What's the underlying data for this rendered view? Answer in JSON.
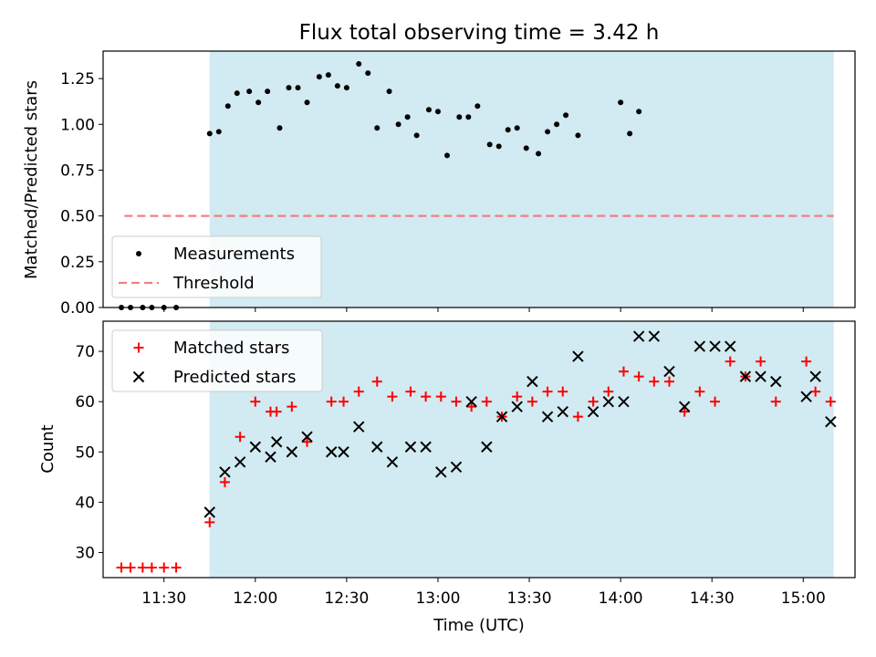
{
  "chart_data": [
    {
      "type": "scatter",
      "title": "Flux total observing time = 3.42 h",
      "xlabel": "",
      "ylabel": "Matched/Predicted stars",
      "ylim": [
        0,
        1.4
      ],
      "y_ticks": [
        0.0,
        0.25,
        0.5,
        0.75,
        1.0,
        1.25
      ],
      "y_tick_labels": [
        "0.00",
        "0.25",
        "0.50",
        "0.75",
        "1.00",
        "1.25"
      ],
      "legend_position": "lower-left",
      "shaded_span": [
        "11:45",
        "15:10"
      ],
      "shade_color": "#add8e6",
      "series": [
        {
          "name": "Measurements",
          "marker": "dot",
          "color": "#000000",
          "points": [
            [
              "11:16",
              0.0
            ],
            [
              "11:19",
              0.0
            ],
            [
              "11:23",
              0.0
            ],
            [
              "11:26",
              0.0
            ],
            [
              "11:30",
              0.0
            ],
            [
              "11:34",
              0.0
            ],
            [
              "11:45",
              0.95
            ],
            [
              "11:48",
              0.96
            ],
            [
              "11:51",
              1.1
            ],
            [
              "11:54",
              1.17
            ],
            [
              "11:58",
              1.18
            ],
            [
              "12:01",
              1.12
            ],
            [
              "12:04",
              1.18
            ],
            [
              "12:08",
              0.98
            ],
            [
              "12:11",
              1.2
            ],
            [
              "12:14",
              1.2
            ],
            [
              "12:17",
              1.12
            ],
            [
              "12:21",
              1.26
            ],
            [
              "12:24",
              1.27
            ],
            [
              "12:27",
              1.21
            ],
            [
              "12:30",
              1.2
            ],
            [
              "12:34",
              1.33
            ],
            [
              "12:37",
              1.28
            ],
            [
              "12:40",
              0.98
            ],
            [
              "12:44",
              1.18
            ],
            [
              "12:47",
              1.0
            ],
            [
              "12:50",
              1.04
            ],
            [
              "12:53",
              0.94
            ],
            [
              "12:57",
              1.08
            ],
            [
              "13:00",
              1.07
            ],
            [
              "13:03",
              0.83
            ],
            [
              "13:07",
              1.04
            ],
            [
              "13:10",
              1.04
            ],
            [
              "13:13",
              1.1
            ],
            [
              "13:17",
              0.89
            ],
            [
              "13:20",
              0.88
            ],
            [
              "13:23",
              0.97
            ],
            [
              "13:26",
              0.98
            ],
            [
              "13:29",
              0.87
            ],
            [
              "13:33",
              0.84
            ],
            [
              "13:36",
              0.96
            ],
            [
              "13:39",
              1.0
            ],
            [
              "13:42",
              1.05
            ],
            [
              "13:46",
              0.94
            ],
            [
              "14:00",
              1.12
            ],
            [
              "14:03",
              0.95
            ],
            [
              "14:06",
              1.07
            ]
          ]
        },
        {
          "name": "Threshold",
          "marker": "dashed-line",
          "color": "#f08080",
          "points": [
            [
              "11:17",
              0.5
            ],
            [
              "15:10",
              0.5
            ]
          ]
        }
      ]
    },
    {
      "type": "scatter",
      "title": "",
      "xlabel": "Time (UTC)",
      "ylabel": "Count",
      "ylim": [
        25,
        76
      ],
      "y_ticks": [
        30,
        40,
        50,
        60,
        70
      ],
      "x_ticks": [
        "11:30",
        "12:00",
        "12:30",
        "13:00",
        "13:30",
        "14:00",
        "14:30",
        "15:00"
      ],
      "legend_position": "upper-left",
      "shaded_span": [
        "11:45",
        "15:10"
      ],
      "shade_color": "#add8e6",
      "series": [
        {
          "name": "Matched stars",
          "marker": "plus",
          "color": "#ff0000",
          "points": [
            [
              "11:16",
              27
            ],
            [
              "11:19",
              27
            ],
            [
              "11:23",
              27
            ],
            [
              "11:26",
              27
            ],
            [
              "11:30",
              27
            ],
            [
              "11:34",
              27
            ],
            [
              "11:45",
              36
            ],
            [
              "11:50",
              44
            ],
            [
              "11:55",
              53
            ],
            [
              "12:00",
              60
            ],
            [
              "12:05",
              58
            ],
            [
              "12:07",
              58
            ],
            [
              "12:12",
              59
            ],
            [
              "12:17",
              52
            ],
            [
              "12:25",
              60
            ],
            [
              "12:29",
              60
            ],
            [
              "12:34",
              62
            ],
            [
              "12:40",
              64
            ],
            [
              "12:45",
              61
            ],
            [
              "12:51",
              62
            ],
            [
              "12:56",
              61
            ],
            [
              "13:01",
              61
            ],
            [
              "13:06",
              60
            ],
            [
              "13:11",
              59
            ],
            [
              "13:16",
              60
            ],
            [
              "13:21",
              57
            ],
            [
              "13:26",
              61
            ],
            [
              "13:31",
              60
            ],
            [
              "13:36",
              62
            ],
            [
              "13:41",
              62
            ],
            [
              "13:46",
              57
            ],
            [
              "13:51",
              60
            ],
            [
              "13:56",
              62
            ],
            [
              "14:01",
              66
            ],
            [
              "14:06",
              65
            ],
            [
              "14:11",
              64
            ],
            [
              "14:16",
              64
            ],
            [
              "14:21",
              58
            ],
            [
              "14:26",
              62
            ],
            [
              "14:31",
              60
            ],
            [
              "14:36",
              68
            ],
            [
              "14:41",
              65
            ],
            [
              "14:46",
              68
            ],
            [
              "14:51",
              60
            ],
            [
              "15:01",
              68
            ],
            [
              "15:04",
              62
            ],
            [
              "15:09",
              60
            ]
          ]
        },
        {
          "name": "Predicted stars",
          "marker": "x",
          "color": "#000000",
          "points": [
            [
              "11:45",
              38
            ],
            [
              "11:50",
              46
            ],
            [
              "11:55",
              48
            ],
            [
              "12:00",
              51
            ],
            [
              "12:05",
              49
            ],
            [
              "12:07",
              52
            ],
            [
              "12:12",
              50
            ],
            [
              "12:17",
              53
            ],
            [
              "12:25",
              50
            ],
            [
              "12:29",
              50
            ],
            [
              "12:34",
              55
            ],
            [
              "12:40",
              51
            ],
            [
              "12:45",
              48
            ],
            [
              "12:51",
              51
            ],
            [
              "12:56",
              51
            ],
            [
              "13:01",
              46
            ],
            [
              "13:06",
              47
            ],
            [
              "13:11",
              60
            ],
            [
              "13:16",
              51
            ],
            [
              "13:21",
              57
            ],
            [
              "13:26",
              59
            ],
            [
              "13:31",
              64
            ],
            [
              "13:36",
              57
            ],
            [
              "13:41",
              58
            ],
            [
              "13:46",
              69
            ],
            [
              "13:51",
              58
            ],
            [
              "13:56",
              60
            ],
            [
              "14:01",
              60
            ],
            [
              "14:06",
              73
            ],
            [
              "14:11",
              73
            ],
            [
              "14:16",
              66
            ],
            [
              "14:21",
              59
            ],
            [
              "14:26",
              71
            ],
            [
              "14:31",
              71
            ],
            [
              "14:36",
              71
            ],
            [
              "14:41",
              65
            ],
            [
              "14:46",
              65
            ],
            [
              "14:51",
              64
            ],
            [
              "15:01",
              61
            ],
            [
              "15:04",
              65
            ],
            [
              "15:09",
              56
            ]
          ]
        }
      ]
    }
  ]
}
